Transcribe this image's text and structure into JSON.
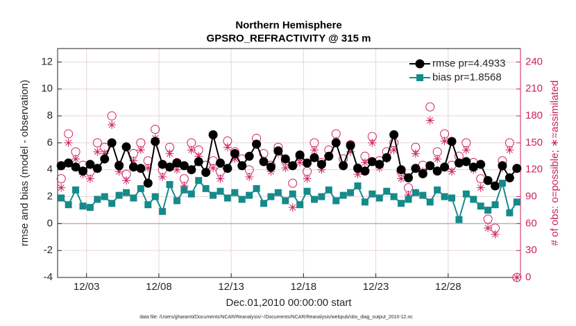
{
  "chart_data": {
    "type": "line",
    "title": "Northern Hemisphere",
    "subtitle": "GPSRO_REFRACTIVITY @ 315 m",
    "xlabel": "Dec.01,2010 00:00:00 start",
    "ylabel": "rmse and bias (model - observation)",
    "y2label": "# of obs: o=possible; ∗=assimilated",
    "footnote": "data file: /Users/gharamti/Documents/NCAR/Reanalysis/~/Documents/NCAR/Reanalysis/webpub/obs_diag_output_2010-12.nc",
    "xlim": [
      0,
      32
    ],
    "xticks": [
      {
        "value": 2,
        "label": "12/03"
      },
      {
        "value": 7,
        "label": "12/08"
      },
      {
        "value": 12,
        "label": "12/13"
      },
      {
        "value": 17,
        "label": "12/18"
      },
      {
        "value": 22,
        "label": "12/23"
      },
      {
        "value": 27,
        "label": "12/28"
      }
    ],
    "ylim": [
      -4,
      13
    ],
    "yticks": [
      -4,
      -2,
      0,
      2,
      4,
      6,
      8,
      10,
      12
    ],
    "y2lim": [
      0,
      255
    ],
    "y2ticks": [
      0,
      30,
      60,
      90,
      120,
      150,
      180,
      210,
      240
    ],
    "y2color": "#cc1f5f",
    "grid": true,
    "legend": "northeast",
    "x": [
      0.25,
      0.75,
      1.25,
      1.75,
      2.25,
      2.75,
      3.25,
      3.75,
      4.25,
      4.75,
      5.25,
      5.75,
      6.25,
      6.75,
      7.25,
      7.75,
      8.25,
      8.75,
      9.25,
      9.75,
      10.25,
      10.75,
      11.25,
      11.75,
      12.25,
      12.75,
      13.25,
      13.75,
      14.25,
      14.75,
      15.25,
      15.75,
      16.25,
      16.75,
      17.25,
      17.75,
      18.25,
      18.75,
      19.25,
      19.75,
      20.25,
      20.75,
      21.25,
      21.75,
      22.25,
      22.75,
      23.25,
      23.75,
      24.25,
      24.75,
      25.25,
      25.75,
      26.25,
      26.75,
      27.25,
      27.75,
      28.25,
      28.75,
      29.25,
      29.75,
      30.25,
      30.75,
      31.25,
      31.75
    ],
    "series": [
      {
        "name": "rmse pr=4.4933",
        "color": "#000000",
        "marker": "circle",
        "line": true,
        "values": [
          4.3,
          4.5,
          4.2,
          3.9,
          4.4,
          4.1,
          4.8,
          6.0,
          4.3,
          5.7,
          4.2,
          4.1,
          3.0,
          6.1,
          4.4,
          4.2,
          4.5,
          4.3,
          4.0,
          4.6,
          3.8,
          6.6,
          4.5,
          4.1,
          5.2,
          4.3,
          5.0,
          5.9,
          4.6,
          4.2,
          5.4,
          4.8,
          4.3,
          5.1,
          4.5,
          4.9,
          4.4,
          5.0,
          6.0,
          4.3,
          5.8,
          4.1,
          3.9,
          4.6,
          4.4,
          4.9,
          6.6,
          4.0,
          3.4,
          4.1,
          3.7,
          4.3,
          3.9,
          4.2,
          6.1,
          4.5,
          4.6,
          4.2,
          4.4,
          3.2,
          2.8,
          4.3,
          3.4,
          4.1
        ]
      },
      {
        "name": "bias pr=1.8568",
        "color": "#168a8a",
        "marker": "square",
        "line": true,
        "values": [
          1.9,
          1.4,
          2.5,
          1.3,
          1.2,
          1.8,
          2.0,
          1.5,
          2.1,
          2.3,
          1.9,
          2.6,
          1.4,
          2.0,
          0.9,
          2.9,
          1.7,
          2.5,
          2.2,
          3.2,
          2.6,
          2.1,
          2.4,
          1.9,
          2.3,
          1.8,
          2.1,
          2.6,
          1.5,
          2.0,
          2.3,
          1.7,
          2.2,
          1.4,
          2.4,
          1.8,
          2.0,
          2.5,
          1.7,
          2.1,
          2.3,
          2.8,
          1.6,
          2.2,
          1.9,
          2.4,
          2.0,
          1.5,
          1.8,
          2.3,
          2.1,
          1.6,
          2.5,
          2.0,
          1.9,
          0.3,
          2.2,
          1.8,
          1.3,
          1.0,
          1.4,
          3.0,
          0.8,
          1.6
        ]
      },
      {
        "axis": "y2",
        "color": "#cc1f5f",
        "marker": "open-circle",
        "line": false,
        "values": [
          110,
          160,
          140,
          125,
          118,
          150,
          145,
          180,
          125,
          115,
          138,
          150,
          130,
          165,
          120,
          145,
          128,
          110,
          150,
          142,
          125,
          130,
          118,
          152,
          140,
          132,
          120,
          155,
          138,
          125,
          145,
          130,
          105,
          135,
          118,
          150,
          128,
          142,
          160,
          132,
          148,
          122,
          135,
          157,
          130,
          140,
          150,
          118,
          100,
          145,
          125,
          190,
          140,
          160,
          125,
          135,
          150,
          128,
          110,
          65,
          55,
          130,
          150,
          0
        ]
      },
      {
        "axis": "y2",
        "color": "#cc1f5f",
        "marker": "asterisk",
        "line": false,
        "values": [
          100,
          150,
          132,
          115,
          110,
          140,
          138,
          170,
          118,
          108,
          130,
          142,
          122,
          155,
          112,
          138,
          120,
          102,
          142,
          135,
          118,
          122,
          110,
          145,
          132,
          125,
          112,
          148,
          130,
          118,
          138,
          122,
          78,
          128,
          110,
          142,
          120,
          135,
          152,
          125,
          140,
          115,
          128,
          150,
          122,
          132,
          142,
          110,
          92,
          138,
          118,
          175,
          132,
          152,
          118,
          128,
          142,
          120,
          100,
          55,
          48,
          122,
          142,
          0
        ]
      }
    ]
  }
}
